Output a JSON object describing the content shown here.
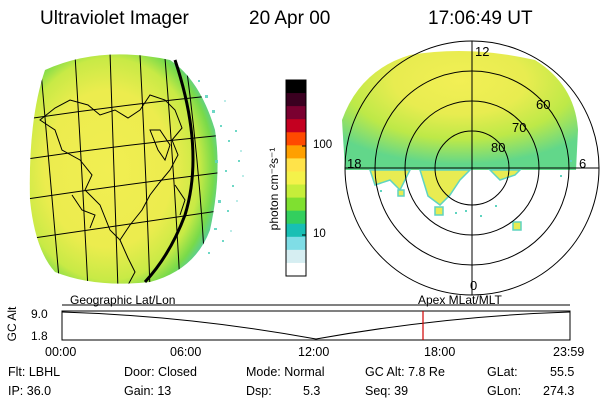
{
  "header": {
    "instrument": "Ultraviolet Imager",
    "date": "20 Apr 00",
    "time": "17:06:49 UT"
  },
  "colorbar": {
    "unit_label": "photon cm⁻²s⁻¹",
    "ticks": [
      "100",
      "10"
    ],
    "colors": [
      "#000000",
      "#3a0020",
      "#7a0030",
      "#c40020",
      "#ff4a00",
      "#ffa000",
      "#ffe34a",
      "#f4f24a",
      "#c6ee3a",
      "#7fe030",
      "#33cf5e",
      "#18bfb4",
      "#7fdde6",
      "#d6eef2",
      "#ffffff"
    ]
  },
  "polar_plot": {
    "mlt_labels": {
      "top": "12",
      "right": "6",
      "left": "18",
      "bottom": "0"
    },
    "lat_labels": [
      "60",
      "70",
      "80"
    ]
  },
  "altitude_strip": {
    "y_label": "GC Alt",
    "y_ticks": [
      "9.0",
      "1.8"
    ],
    "left_label": "Geographic Lat/Lon",
    "right_label": "Apex MLat/MLT",
    "time_ticks": [
      "00:00",
      "06:00",
      "12:00",
      "18:00",
      "23:59"
    ],
    "marker_color": "#d00000"
  },
  "status": {
    "flt": "Flt: LBHL",
    "ip": "IP: 36.0",
    "door": "Door: Closed",
    "gain": "Gain: 13",
    "mode": "Mode: Normal",
    "dsp_label": "Dsp:",
    "dsp_value": "5.3",
    "gc_alt": "GC Alt: 7.8 Re",
    "seq": "Seq: 39",
    "glat_label": "GLat:",
    "glat_value": "55.5",
    "glon_label": "GLon:",
    "glon_value": "274.3"
  }
}
